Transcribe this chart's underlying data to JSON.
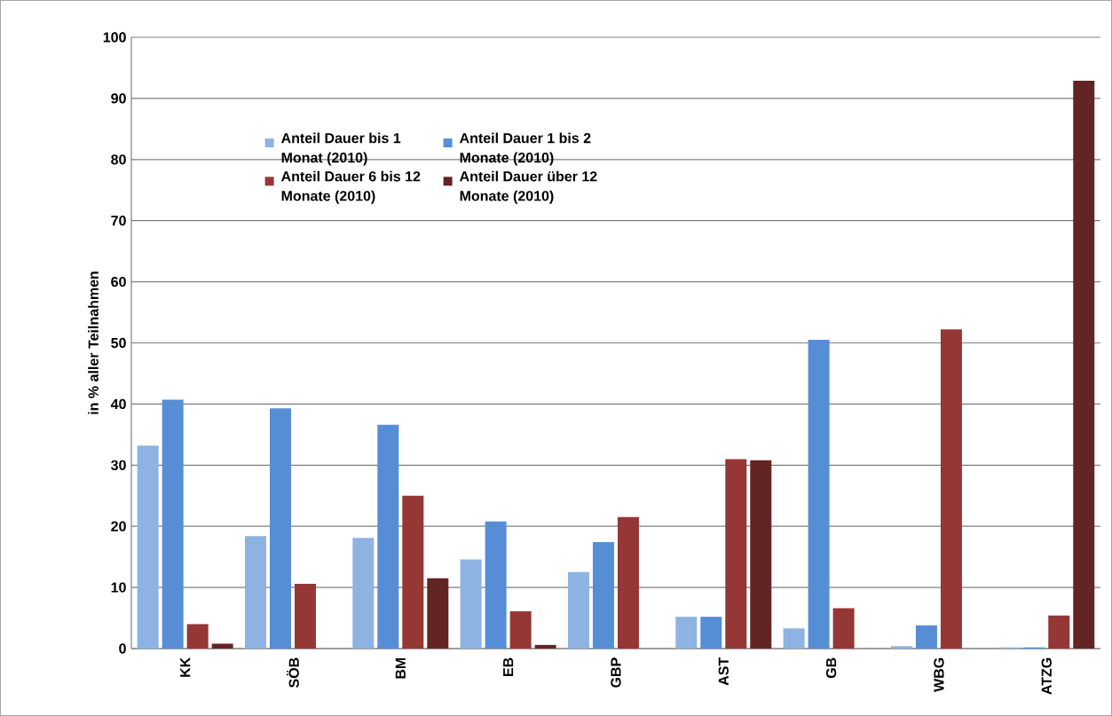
{
  "chart_data": {
    "type": "bar",
    "ylabel": "in % aller Teilnahmen",
    "categories": [
      "KK",
      "SÖB",
      "BM",
      "EB",
      "GBP",
      "AST",
      "GB",
      "WBG",
      "ATZG"
    ],
    "series": [
      {
        "name": "Anteil Dauer bis 1 Monat (2010)",
        "color": "#8db3e2",
        "values": [
          33.2,
          18.4,
          18.1,
          14.6,
          12.5,
          5.2,
          3.3,
          0.4,
          0.2
        ]
      },
      {
        "name": "Anteil Dauer 1 bis 2 Monate (2010)",
        "color": "#558ed5",
        "values": [
          40.7,
          39.3,
          36.6,
          20.8,
          17.4,
          5.2,
          50.5,
          3.8,
          0.2
        ]
      },
      {
        "name": "Anteil Dauer 6 bis 12 Monate (2010)",
        "color": "#953735",
        "values": [
          4.0,
          10.6,
          25.0,
          6.1,
          21.5,
          31.0,
          6.6,
          52.2,
          5.4
        ]
      },
      {
        "name": "Anteil Dauer über 12 Monate (2010)",
        "color": "#632523",
        "values": [
          0.8,
          0,
          11.5,
          0.6,
          0,
          30.8,
          0,
          0,
          92.9
        ]
      }
    ],
    "ylim": [
      0,
      100
    ],
    "yticks": [
      0,
      10,
      20,
      30,
      40,
      50,
      60,
      70,
      80,
      90,
      100
    ],
    "grid": "y",
    "legend": "top left"
  }
}
